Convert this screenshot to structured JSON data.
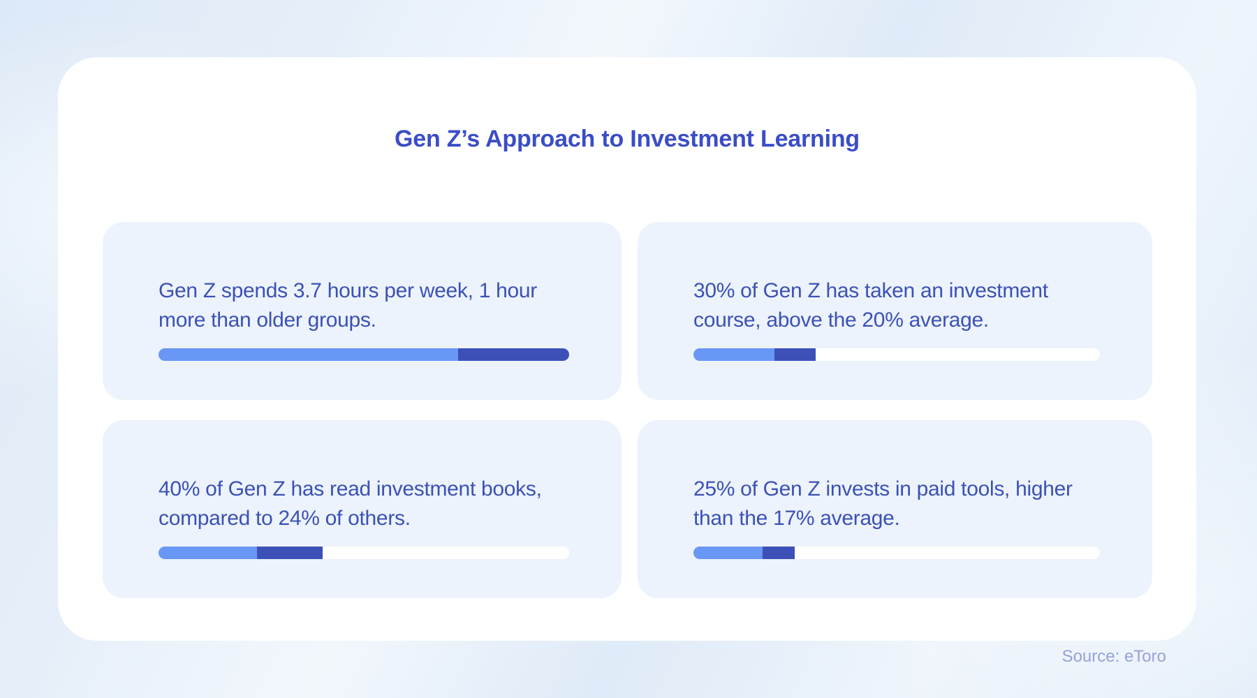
{
  "page": {
    "title": "Gen Z’s Approach to Investment Learning",
    "source_label": "Source: eToro"
  },
  "colors": {
    "page_background": "#e6eff9",
    "panel_background": "#ffffff",
    "card_background": "#ecf3fc",
    "title_text": "#3a4dc7",
    "card_text": "#3b51b5",
    "bar_base": "#6997f5",
    "bar_extra": "#3c50b8",
    "bar_track": "#ffffff",
    "source_text": "#96a3d8"
  },
  "cards": [
    {
      "text": "Gen Z spends 3.7 hours per week, 1 hour more than older groups.",
      "base_pct": 73,
      "extra_pct": 27
    },
    {
      "text": "30% of Gen Z has taken an investment course, above the 20% average.",
      "base_pct": 20,
      "extra_pct": 10
    },
    {
      "text": "40% of Gen Z has read investment books, compared to 24% of others.",
      "base_pct": 24,
      "extra_pct": 16
    },
    {
      "text": "25% of Gen Z invests in paid tools, higher than the 17% average.",
      "base_pct": 17,
      "extra_pct": 8
    }
  ],
  "chart_data": [
    {
      "type": "bar",
      "title": "Time spent on investment learning",
      "categories": [
        "Older groups",
        "Gen Z"
      ],
      "values": [
        2.7,
        3.7
      ],
      "unit": "hours per week",
      "note": "Bar: light segment 73% (2.7h) + dark segment 27% (1h extra) of 3.7h total",
      "xlim": [
        0,
        3.7
      ]
    },
    {
      "type": "bar",
      "title": "Has taken an investment course",
      "categories": [
        "Average",
        "Gen Z"
      ],
      "values": [
        20,
        30
      ],
      "unit": "%",
      "note": "Bar: light 20% + dark 10% on white track to 100%",
      "xlim": [
        0,
        100
      ]
    },
    {
      "type": "bar",
      "title": "Has read investment books",
      "categories": [
        "Others",
        "Gen Z"
      ],
      "values": [
        24,
        40
      ],
      "unit": "%",
      "note": "Bar: light 24% + dark 16% on white track to 100%",
      "xlim": [
        0,
        100
      ]
    },
    {
      "type": "bar",
      "title": "Invests in paid tools",
      "categories": [
        "Average",
        "Gen Z"
      ],
      "values": [
        17,
        25
      ],
      "unit": "%",
      "note": "Bar: light 17% + dark 8% on white track to 100%",
      "xlim": [
        0,
        100
      ]
    }
  ]
}
